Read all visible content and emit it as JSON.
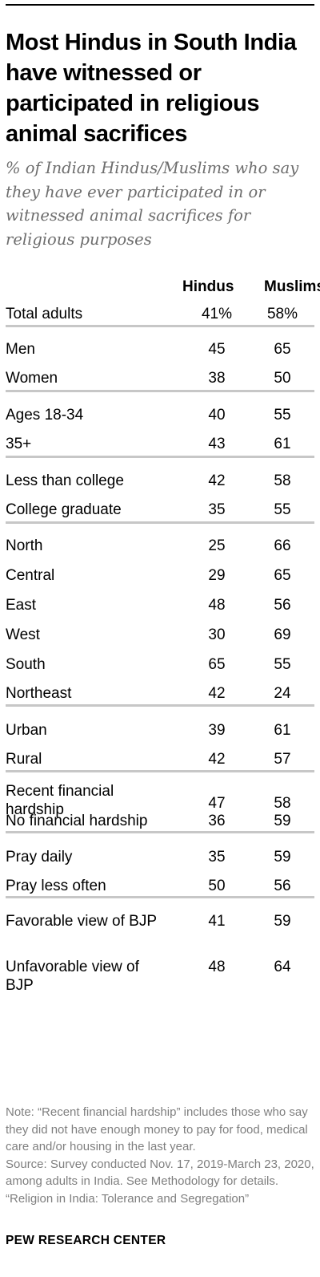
{
  "title": "Most Hindus in South India have witnessed or participated in religious animal sacrifices",
  "subtitle": "% of Indian Hindus/Muslims who say they have ever participated in or witnessed animal sacrifices for religious purposes",
  "columns": [
    "Hindus",
    "Muslims"
  ],
  "chart_data": {
    "type": "table",
    "columns": [
      "Hindus",
      "Muslims"
    ],
    "groups": [
      [
        {
          "label": "Total adults",
          "values": [
            "41%",
            "58%"
          ]
        }
      ],
      [
        {
          "label": "Men",
          "values": [
            "45",
            "65"
          ]
        },
        {
          "label": "Women",
          "values": [
            "38",
            "50"
          ]
        }
      ],
      [
        {
          "label": "Ages 18-34",
          "values": [
            "40",
            "55"
          ]
        },
        {
          "label": "35+",
          "values": [
            "43",
            "61"
          ]
        }
      ],
      [
        {
          "label": "Less than college",
          "values": [
            "42",
            "58"
          ]
        },
        {
          "label": "College graduate",
          "values": [
            "35",
            "55"
          ]
        }
      ],
      [
        {
          "label": "North",
          "values": [
            "25",
            "66"
          ]
        },
        {
          "label": "Central",
          "values": [
            "29",
            "65"
          ]
        },
        {
          "label": "East",
          "values": [
            "48",
            "56"
          ]
        },
        {
          "label": "West",
          "values": [
            "30",
            "69"
          ]
        },
        {
          "label": "South",
          "values": [
            "65",
            "55"
          ]
        },
        {
          "label": "Northeast",
          "values": [
            "42",
            "24"
          ]
        }
      ],
      [
        {
          "label": "Urban",
          "values": [
            "39",
            "61"
          ]
        },
        {
          "label": "Rural",
          "values": [
            "42",
            "57"
          ]
        }
      ],
      [
        {
          "label": "Recent financial hardship",
          "values": [
            "47",
            "58"
          ]
        },
        {
          "label": "No financial hardship",
          "values": [
            "36",
            "59"
          ]
        }
      ],
      [
        {
          "label": "Pray daily",
          "values": [
            "35",
            "59"
          ]
        },
        {
          "label": "Pray less often",
          "values": [
            "50",
            "56"
          ]
        }
      ],
      [
        {
          "label": "Favorable view of BJP",
          "values": [
            "41",
            "59"
          ]
        },
        {
          "label": "Unfavorable view of BJP",
          "values": [
            "48",
            "64"
          ]
        }
      ]
    ]
  },
  "notes": {
    "note": "Note: “Recent financial hardship” includes those who say they did not have enough money to pay for food, medical care and/or housing in the last year.",
    "source": "Source: Survey conducted Nov. 17, 2019-March 23, 2020, among adults in India. See Methodology for details.",
    "report": "“Religion in India: Tolerance and Segregation”"
  },
  "footer": "PEW RESEARCH CENTER"
}
